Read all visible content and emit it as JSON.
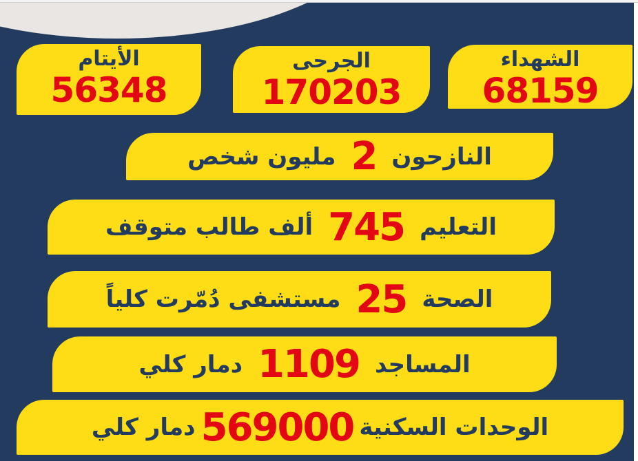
{
  "stats": [
    {
      "label": "الأيتام",
      "value": "56348"
    },
    {
      "label": "الجرحى",
      "value": "170203"
    },
    {
      "label": "الشهداء",
      "value": "68159"
    }
  ],
  "rows": [
    {
      "label": "النازحون",
      "value": "2",
      "text": "مليون شخص"
    },
    {
      "label": "التعليم",
      "value": "745",
      "text": "ألف طالب متوقف"
    },
    {
      "label": "الصحة",
      "value": "25",
      "text": "مستشفى دُمّرت كلياً"
    },
    {
      "label": "المساجد",
      "value": "1109",
      "text": "دمار كلي"
    },
    {
      "label": "الوحدات السكنية",
      "value": "569000",
      "text": "دمار كلي"
    }
  ],
  "colors": {
    "background": "#223b5e",
    "box": "#fedd17",
    "number": "#e30613",
    "text": "#223b5e"
  }
}
